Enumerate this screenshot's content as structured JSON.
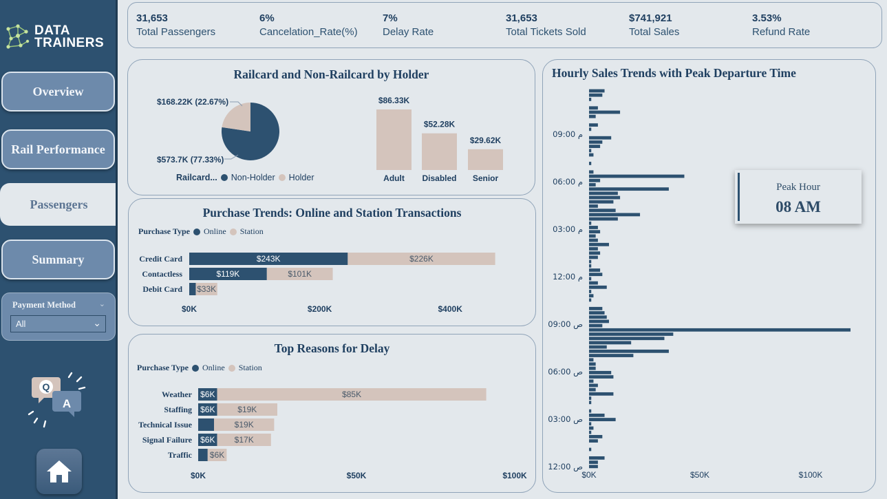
{
  "colors": {
    "navy": "#2d5170",
    "sand": "#d4c4bc",
    "sidebar": "#2d5170",
    "bg": "#e3e8ec"
  },
  "logo": {
    "line1": "DATA",
    "line2": "TRAINERS"
  },
  "nav": {
    "overview": "Overview",
    "rail_performance": "Rail Performance",
    "passengers": "Passengers",
    "summary": "Summary"
  },
  "filter": {
    "label": "Payment Method",
    "selected": "All"
  },
  "qa_icon": {
    "q": "Q",
    "a": "A"
  },
  "kpis": [
    {
      "value": "31,653",
      "label": "Total Passengers"
    },
    {
      "value": "6%",
      "label": "Cancelation_Rate(%)"
    },
    {
      "value": "7%",
      "label": "Delay Rate"
    },
    {
      "value": "31,653",
      "label": "Total Tickets Sold"
    },
    {
      "value": "$741,921",
      "label": "Total Sales"
    },
    {
      "value": "3.53%",
      "label": "Refund Rate"
    }
  ],
  "railcard": {
    "title": "Railcard and Non-Railcard by Holder",
    "legend_title": "Railcard...",
    "legend": [
      "Non-Holder",
      "Holder"
    ],
    "pie": [
      {
        "name": "Non-Holder",
        "value": 573.7,
        "label": "$573.7K (77.33%)"
      },
      {
        "name": "Holder",
        "value": 168.22,
        "label": "$168.22K (22.67%)"
      }
    ],
    "bars": [
      {
        "category": "Adult",
        "value": 86.33,
        "label": "$86.33K"
      },
      {
        "category": "Disabled",
        "value": 52.28,
        "label": "$52.28K"
      },
      {
        "category": "Senior",
        "value": 29.62,
        "label": "$29.62K"
      }
    ]
  },
  "purchase": {
    "title": "Purchase Trends: Online and Station Transactions",
    "legend_title": "Purchase Type",
    "legend": [
      "Online",
      "Station"
    ],
    "ticks": [
      "$0K",
      "$200K",
      "$400K"
    ],
    "tick_values": [
      0,
      200,
      400
    ],
    "rows": [
      {
        "category": "Credit Card",
        "online": 243,
        "station": 226,
        "online_label": "$243K",
        "station_label": "$226K"
      },
      {
        "category": "Contactless",
        "online": 119,
        "station": 101,
        "online_label": "$119K",
        "station_label": "$101K"
      },
      {
        "category": "Debit Card",
        "online": 10,
        "station": 33,
        "online_label": "",
        "station_label": "$33K"
      }
    ]
  },
  "delay": {
    "title": "Top Reasons for Delay",
    "legend_title": "Purchase Type",
    "legend": [
      "Online",
      "Station"
    ],
    "ticks": [
      "$0K",
      "$50K",
      "$100K"
    ],
    "tick_values": [
      0,
      50,
      100
    ],
    "rows": [
      {
        "category": "Weather",
        "online": 6,
        "station": 85,
        "online_label": "$6K",
        "station_label": "$85K"
      },
      {
        "category": "Staffing",
        "online": 6,
        "station": 19,
        "online_label": "$6K",
        "station_label": "$19K"
      },
      {
        "category": "Technical Issue",
        "online": 5,
        "station": 19,
        "online_label": "",
        "station_label": "$19K"
      },
      {
        "category": "Signal Failure",
        "online": 6,
        "station": 17,
        "online_label": "$6K",
        "station_label": "$17K"
      },
      {
        "category": "Traffic",
        "online": 3,
        "station": 6,
        "online_label": "",
        "station_label": "$6K"
      }
    ]
  },
  "hourly": {
    "title": "Hourly Sales Trends with Peak Departure Time",
    "y_ticks": [
      "09:00 م",
      "06:00 م",
      "03:00 م",
      "12:00 م",
      "09:00 ص",
      "06:00 ص",
      "03:00 ص",
      "12:00 ص"
    ],
    "x_ticks": [
      "$0K",
      "$50K",
      "$100K"
    ],
    "x_tick_values": [
      0,
      50,
      100
    ],
    "peak_label": "Peak Hour",
    "peak_value": "08 AM"
  },
  "chart_data": [
    {
      "type": "pie",
      "title": "Railcard and Non-Railcard by Holder",
      "categories": [
        "Non-Holder",
        "Holder"
      ],
      "values": [
        573.7,
        168.22
      ]
    },
    {
      "type": "bar",
      "categories": [
        "Adult",
        "Disabled",
        "Senior"
      ],
      "values": [
        86.33,
        52.28,
        29.62
      ]
    },
    {
      "type": "bar",
      "title": "Purchase Trends: Online and Station Transactions",
      "categories": [
        "Credit Card",
        "Contactless",
        "Debit Card"
      ],
      "series": [
        {
          "name": "Online",
          "values": [
            243,
            119,
            10
          ]
        },
        {
          "name": "Station",
          "values": [
            226,
            101,
            33
          ]
        }
      ],
      "xlim": [
        0,
        470
      ]
    },
    {
      "type": "bar",
      "title": "Top Reasons for Delay",
      "categories": [
        "Weather",
        "Staffing",
        "Technical Issue",
        "Signal Failure",
        "Traffic"
      ],
      "series": [
        {
          "name": "Online",
          "values": [
            6,
            6,
            5,
            6,
            3
          ]
        },
        {
          "name": "Station",
          "values": [
            85,
            19,
            19,
            17,
            6
          ]
        }
      ],
      "xlim": [
        0,
        100
      ]
    },
    {
      "type": "bar",
      "title": "Hourly Sales Trends with Peak Departure Time",
      "orientation": "horizontal",
      "xlim": [
        0,
        120
      ],
      "values": [
        7,
        6,
        1,
        0,
        4,
        14,
        3,
        0,
        4,
        1,
        0,
        10,
        6,
        5,
        1,
        2,
        0,
        1,
        0,
        2,
        43,
        5,
        3,
        36,
        13,
        14,
        11,
        4,
        12,
        23,
        13,
        1,
        4,
        5,
        3,
        4,
        9,
        4,
        5,
        4,
        1,
        1,
        5,
        6,
        1,
        4,
        8,
        1,
        2,
        1,
        0,
        6,
        7,
        8,
        9,
        6,
        118,
        38,
        34,
        19,
        8,
        36,
        20,
        2,
        3,
        3,
        10,
        11,
        2,
        4,
        3,
        11,
        1,
        1,
        0,
        1,
        7,
        12,
        1,
        2,
        1,
        6,
        4,
        0,
        1,
        0,
        7,
        4,
        4
      ]
    }
  ]
}
